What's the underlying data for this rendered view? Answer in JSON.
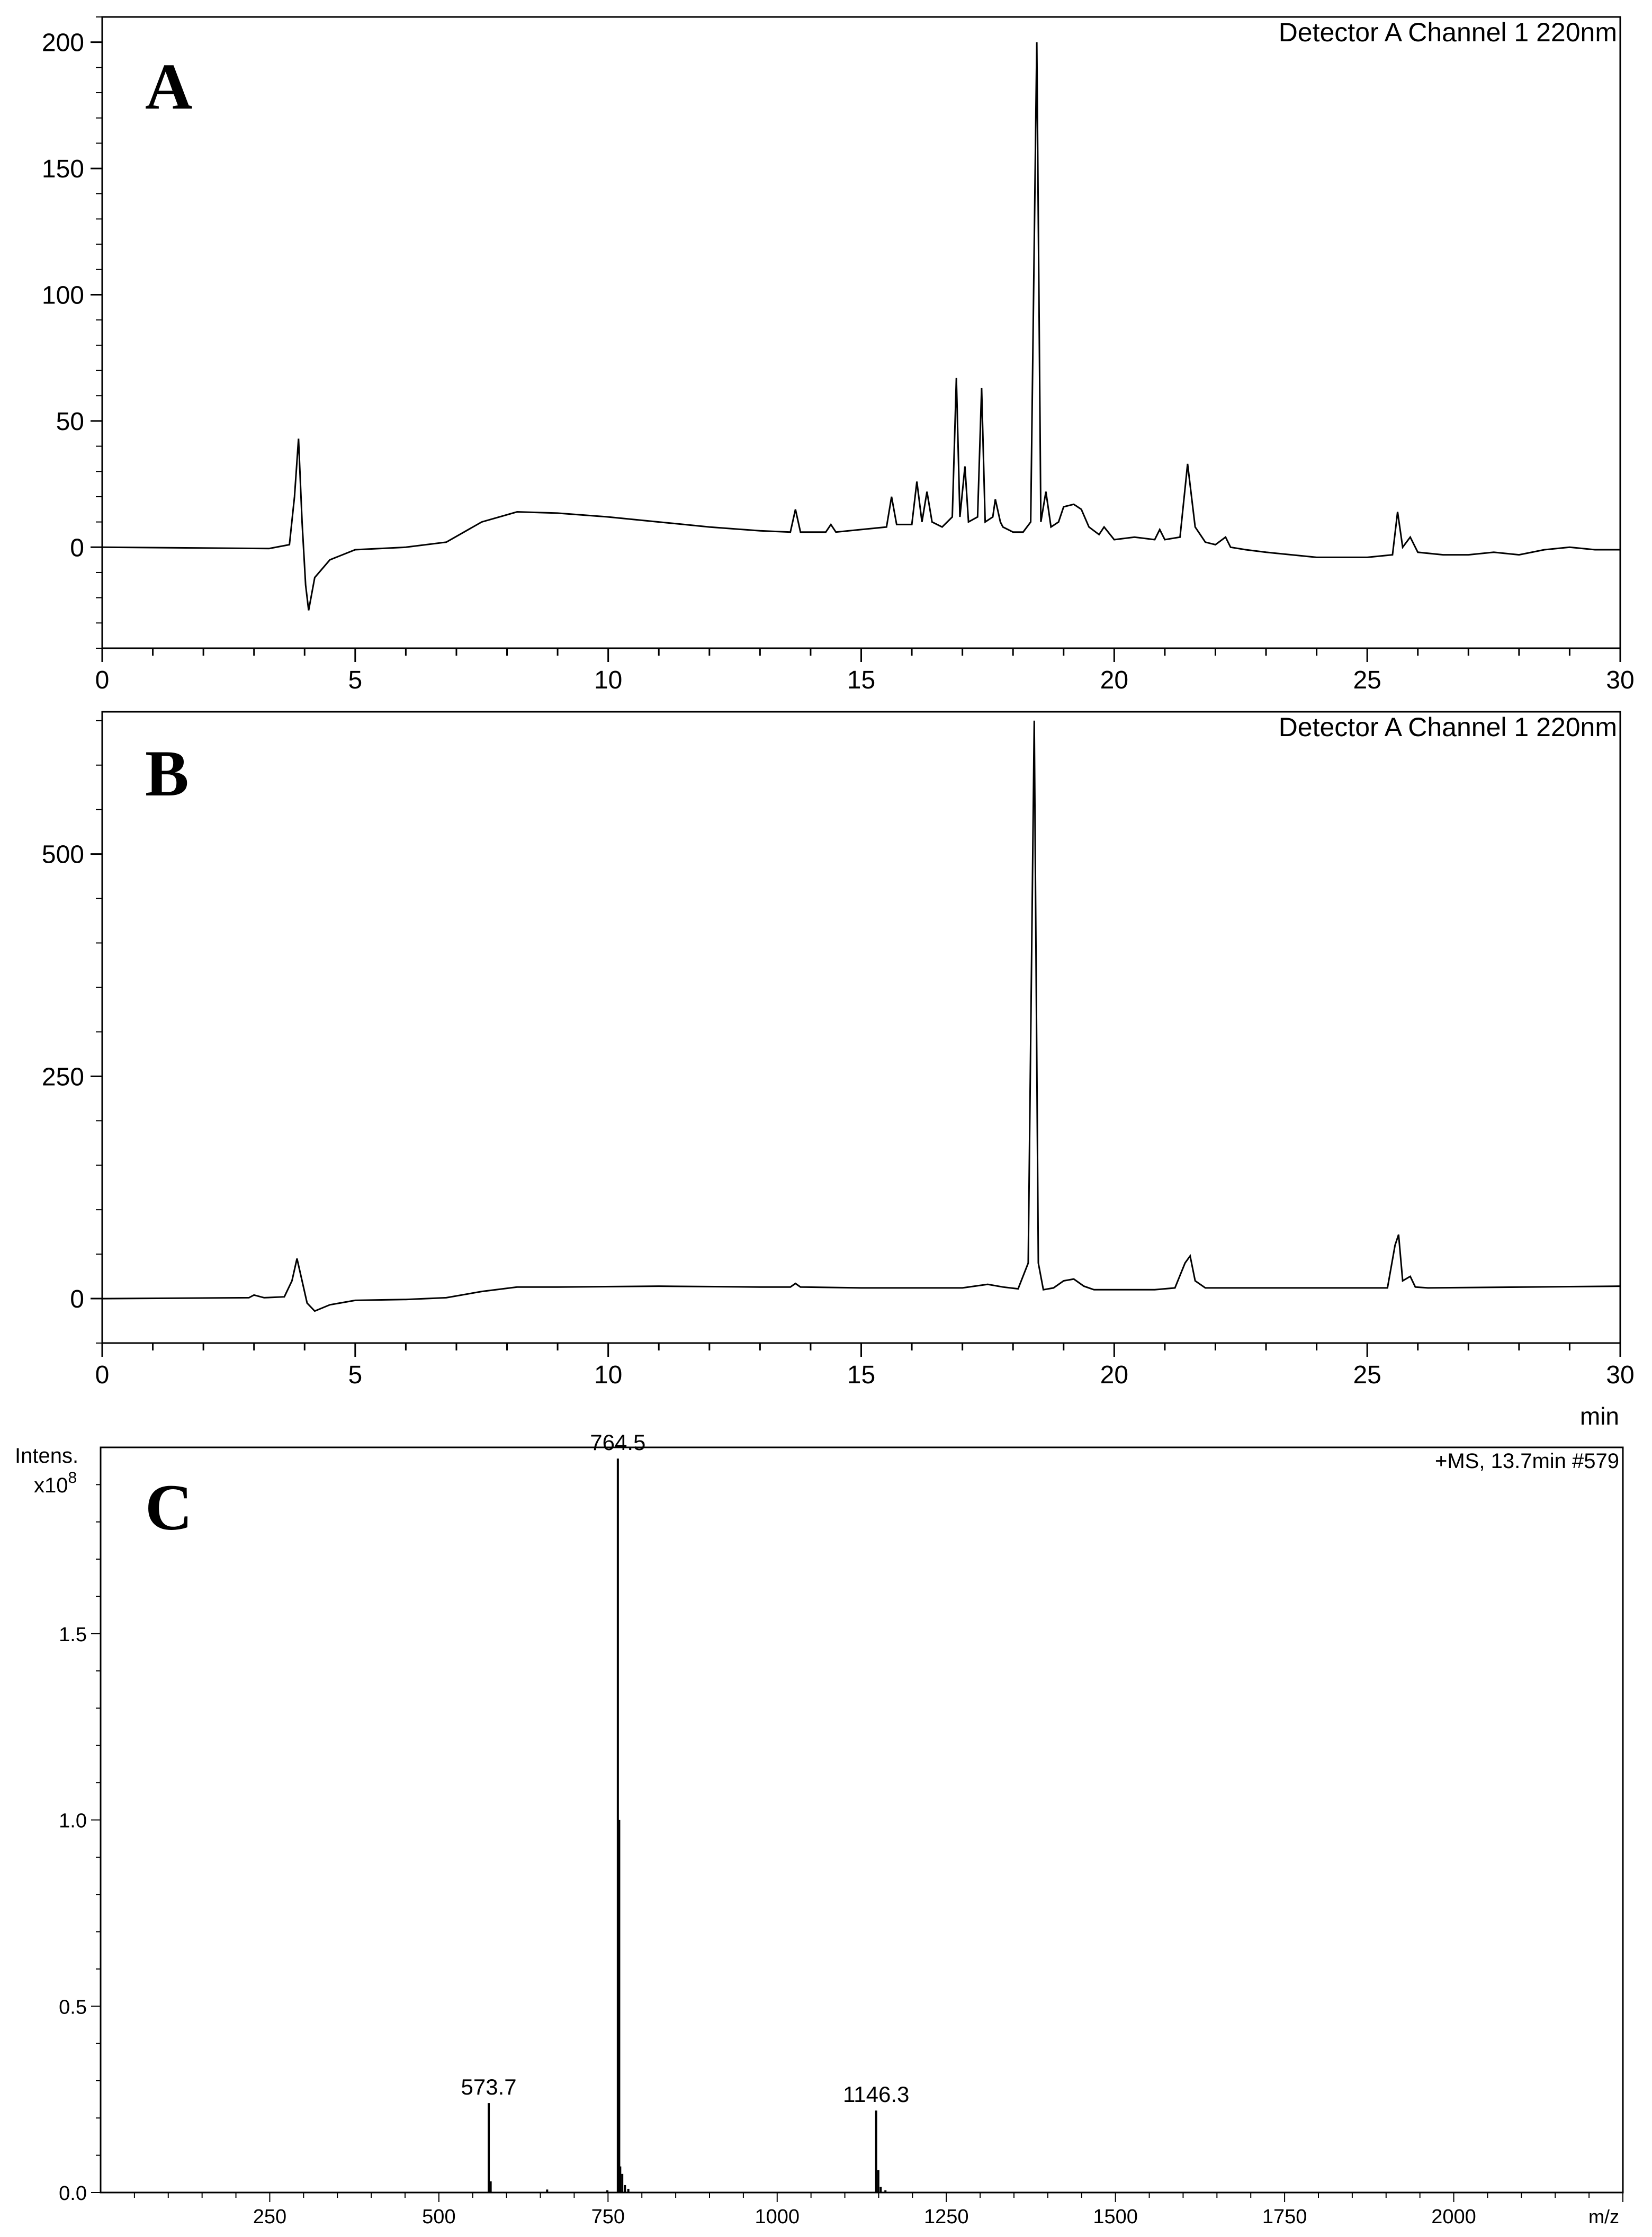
{
  "chart_data": [
    {
      "panel": "A",
      "type": "line",
      "header": "Detector A Channel 1 220nm",
      "xlim": [
        0,
        30
      ],
      "ylim": [
        -40,
        210
      ],
      "xticks": [
        0,
        5,
        10,
        15,
        20,
        25,
        30
      ],
      "yticks": [
        0,
        50,
        100,
        150,
        200
      ],
      "baseline": [
        [
          0,
          0
        ],
        [
          3.3,
          -0.5
        ],
        [
          3.7,
          1
        ],
        [
          3.8,
          20
        ],
        [
          3.88,
          43
        ],
        [
          3.95,
          10
        ],
        [
          4.02,
          -15
        ],
        [
          4.08,
          -25
        ],
        [
          4.2,
          -12
        ],
        [
          4.5,
          -5
        ],
        [
          5,
          -1
        ],
        [
          6,
          0
        ],
        [
          6.8,
          2
        ],
        [
          7.5,
          10
        ],
        [
          8.2,
          14
        ],
        [
          9,
          13.5
        ],
        [
          10,
          12
        ],
        [
          11,
          10
        ],
        [
          12,
          8
        ],
        [
          13,
          6.5
        ],
        [
          13.6,
          6
        ],
        [
          13.7,
          15
        ],
        [
          13.8,
          6
        ],
        [
          14.3,
          6
        ],
        [
          14.4,
          9
        ],
        [
          14.5,
          6
        ],
        [
          15,
          7
        ],
        [
          15.5,
          8
        ],
        [
          15.6,
          20
        ],
        [
          15.7,
          9
        ],
        [
          16,
          9
        ],
        [
          16.1,
          26
        ],
        [
          16.2,
          10
        ],
        [
          16.3,
          22
        ],
        [
          16.4,
          10
        ],
        [
          16.6,
          8
        ],
        [
          16.8,
          12
        ],
        [
          16.88,
          67
        ],
        [
          16.95,
          12
        ],
        [
          17.05,
          32
        ],
        [
          17.12,
          10
        ],
        [
          17.3,
          12
        ],
        [
          17.38,
          63
        ],
        [
          17.45,
          10
        ],
        [
          17.6,
          12
        ],
        [
          17.65,
          19
        ],
        [
          17.75,
          10
        ],
        [
          17.8,
          8
        ],
        [
          18,
          6
        ],
        [
          18.2,
          6
        ],
        [
          18.35,
          10
        ],
        [
          18.47,
          200
        ],
        [
          18.55,
          10
        ],
        [
          18.65,
          22
        ],
        [
          18.75,
          8
        ],
        [
          18.9,
          10
        ],
        [
          19,
          16
        ],
        [
          19.2,
          17
        ],
        [
          19.35,
          15
        ],
        [
          19.5,
          8
        ],
        [
          19.7,
          5
        ],
        [
          19.8,
          8
        ],
        [
          20,
          3
        ],
        [
          20.4,
          4
        ],
        [
          20.8,
          3
        ],
        [
          20.9,
          7
        ],
        [
          21,
          3
        ],
        [
          21.3,
          4
        ],
        [
          21.45,
          33
        ],
        [
          21.6,
          8
        ],
        [
          21.8,
          2
        ],
        [
          22,
          1
        ],
        [
          22.2,
          4
        ],
        [
          22.3,
          0
        ],
        [
          22.6,
          -1
        ],
        [
          23,
          -2
        ],
        [
          24,
          -4
        ],
        [
          25,
          -4
        ],
        [
          25.5,
          -3
        ],
        [
          25.6,
          14
        ],
        [
          25.7,
          0
        ],
        [
          25.85,
          4
        ],
        [
          26,
          -2
        ],
        [
          26.5,
          -3
        ],
        [
          27,
          -3
        ],
        [
          27.5,
          -2
        ],
        [
          28,
          -3
        ],
        [
          28.5,
          -1
        ],
        [
          29,
          0
        ],
        [
          29.5,
          -1
        ],
        [
          30,
          -1
        ]
      ]
    },
    {
      "panel": "B",
      "type": "line",
      "header": "Detector A Channel 1 220nm",
      "xlabel": "min",
      "xlim": [
        0,
        30
      ],
      "ylim": [
        -50,
        660
      ],
      "xticks": [
        0,
        5,
        10,
        15,
        20,
        25,
        30
      ],
      "yticks": [
        0,
        250,
        500
      ],
      "baseline": [
        [
          0,
          0
        ],
        [
          2.9,
          1
        ],
        [
          3,
          4
        ],
        [
          3.2,
          1
        ],
        [
          3.6,
          2
        ],
        [
          3.75,
          20
        ],
        [
          3.85,
          45
        ],
        [
          3.95,
          20
        ],
        [
          4.05,
          -5
        ],
        [
          4.2,
          -14
        ],
        [
          4.5,
          -7
        ],
        [
          5,
          -2
        ],
        [
          6,
          -1
        ],
        [
          6.8,
          1
        ],
        [
          7.5,
          8
        ],
        [
          8.2,
          13
        ],
        [
          9,
          13
        ],
        [
          11,
          14
        ],
        [
          13,
          13
        ],
        [
          13.6,
          13
        ],
        [
          13.7,
          17
        ],
        [
          13.8,
          13
        ],
        [
          15,
          12
        ],
        [
          17,
          12
        ],
        [
          17.5,
          16
        ],
        [
          17.8,
          13
        ],
        [
          18.1,
          11
        ],
        [
          18.3,
          40
        ],
        [
          18.42,
          650
        ],
        [
          18.5,
          40
        ],
        [
          18.6,
          10
        ],
        [
          18.8,
          12
        ],
        [
          19,
          20
        ],
        [
          19.2,
          22
        ],
        [
          19.4,
          14
        ],
        [
          19.6,
          10
        ],
        [
          20.8,
          10
        ],
        [
          21.2,
          12
        ],
        [
          21.4,
          40
        ],
        [
          21.5,
          48
        ],
        [
          21.6,
          20
        ],
        [
          21.8,
          12
        ],
        [
          22.5,
          12
        ],
        [
          25.4,
          12
        ],
        [
          25.55,
          60
        ],
        [
          25.62,
          72
        ],
        [
          25.7,
          20
        ],
        [
          25.85,
          25
        ],
        [
          25.95,
          13
        ],
        [
          26.2,
          12
        ],
        [
          30,
          14
        ]
      ]
    },
    {
      "panel": "C",
      "type": "bar",
      "header": "+MS, 13.7min #579",
      "ylabel_top": "Intens.",
      "ylabel_exp": "x10",
      "ylabel_exp_sup": "8",
      "xlabel": "m/z",
      "xlim": [
        0,
        2250
      ],
      "ylim": [
        0,
        2.0
      ],
      "xticks": [
        250,
        500,
        750,
        1000,
        1250,
        1500,
        1750,
        2000
      ],
      "yticks": [
        "0.0",
        "0.5",
        "1.0",
        "1.5"
      ],
      "ytick_values": [
        0,
        0.5,
        1.0,
        1.5
      ],
      "peaks": [
        {
          "mz": 573.7,
          "intensity": 0.24,
          "label": "573.7"
        },
        {
          "mz": 576.5,
          "intensity": 0.03
        },
        {
          "mz": 660.0,
          "intensity": 0.008
        },
        {
          "mz": 749.0,
          "intensity": 0.006
        },
        {
          "mz": 764.5,
          "intensity": 1.97,
          "label": "764.5"
        },
        {
          "mz": 766.5,
          "intensity": 1.0
        },
        {
          "mz": 768.0,
          "intensity": 0.07
        },
        {
          "mz": 771.0,
          "intensity": 0.05
        },
        {
          "mz": 775.0,
          "intensity": 0.02
        },
        {
          "mz": 780.0,
          "intensity": 0.01
        },
        {
          "mz": 1146.3,
          "intensity": 0.22,
          "label": "1146.3"
        },
        {
          "mz": 1149.5,
          "intensity": 0.06
        },
        {
          "mz": 1153.0,
          "intensity": 0.015
        },
        {
          "mz": 1160.0,
          "intensity": 0.006
        }
      ]
    }
  ]
}
